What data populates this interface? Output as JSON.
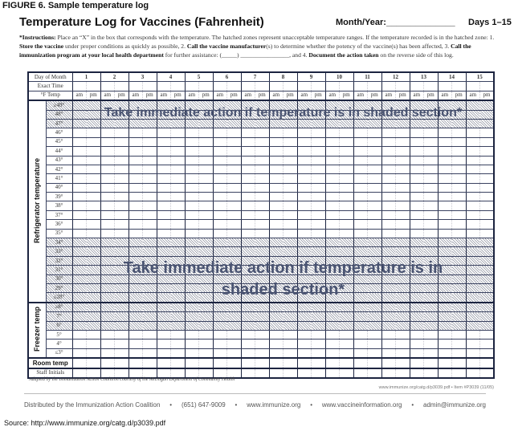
{
  "figure_caption": "FIGURE 6. Sample temperature log",
  "title": "Temperature Log for Vaccines (Fahrenheit)",
  "month_year_label": "Month/Year:______________",
  "days_label": "Days 1–15",
  "instructions": {
    "p1": "*Instructions:",
    "p2": " Place an “X” in the box that corresponds with the temperature. The hatched zones represent unacceptable temperature ranges. If the temperature recorded is in the hatched zone: 1. ",
    "p3": "Store the vaccine",
    "p4": " under proper conditions as quickly as possible, 2. ",
    "p5": "Call the vaccine manufacturer",
    "p6": "(s) to determine whether the potency of the vaccine(s) has been affected, 3. ",
    "p7": "Call the immunization program at your local health department",
    "p8": " for further assistance: (_____) ________________, and 4. ",
    "p9": "Document the action taken",
    "p10": " on the reverse side of this log."
  },
  "table": {
    "day_header": "Day of Month",
    "time_header": "Exact Time",
    "temp_header": "°F Temp",
    "am": "am",
    "pm": "pm",
    "days": [
      "1",
      "2",
      "3",
      "4",
      "5",
      "6",
      "7",
      "8",
      "9",
      "10",
      "11",
      "12",
      "13",
      "14",
      "15"
    ],
    "refrigerator_label": "Refrigerator temperature",
    "refrigerator_rows": [
      {
        "t": "≥49°",
        "hatched": true
      },
      {
        "t": "48°",
        "hatched": true
      },
      {
        "t": "47°",
        "hatched": true
      },
      {
        "t": "46°",
        "hatched": false
      },
      {
        "t": "45°",
        "hatched": false
      },
      {
        "t": "44°",
        "hatched": false
      },
      {
        "t": "43°",
        "hatched": false
      },
      {
        "t": "42°",
        "hatched": false
      },
      {
        "t": "41°",
        "hatched": false
      },
      {
        "t": "40°",
        "hatched": false
      },
      {
        "t": "39°",
        "hatched": false
      },
      {
        "t": "38°",
        "hatched": false
      },
      {
        "t": "37°",
        "hatched": false
      },
      {
        "t": "36°",
        "hatched": false
      },
      {
        "t": "35°",
        "hatched": false
      },
      {
        "t": "34°",
        "hatched": true
      },
      {
        "t": "33°",
        "hatched": true
      },
      {
        "t": "32°",
        "hatched": true
      },
      {
        "t": "31°",
        "hatched": true
      },
      {
        "t": "30°",
        "hatched": true
      },
      {
        "t": "29°",
        "hatched": true
      },
      {
        "t": "≤28°",
        "hatched": true
      }
    ],
    "freezer_label": "Freezer temp",
    "freezer_rows": [
      {
        "t": "≥8°",
        "hatched": true
      },
      {
        "t": "7°",
        "hatched": true
      },
      {
        "t": "6°",
        "hatched": true
      },
      {
        "t": "5°",
        "hatched": false
      },
      {
        "t": "4°",
        "hatched": false
      },
      {
        "t": "≤3°",
        "hatched": false
      }
    ],
    "room_temp_label": "Room temp",
    "staff_initials_label": "Staff Initials"
  },
  "overlay_1": "Take immediate action if temperature is in shaded section*",
  "overlay_2_line1": "Take immediate action if temperature is in",
  "overlay_2_line2": "shaded section*",
  "adapted_note": "Adapted by the Immunization Action Coalition courtesy of the Michigan Department of Community Health",
  "item_note": "www.immunize.org/catg.d/p3039.pdf • Item #P3039 (11/05)",
  "distribution": [
    "Distributed by the Immunization Action Coalition",
    "•",
    "(651) 647-9009",
    "•",
    "www.immunize.org",
    "•",
    "www.vaccineinformation.org",
    "•",
    "admin@immunize.org"
  ],
  "source": "Source:  http://www.immunize.org/catg.d/p3039.pdf",
  "colors": {
    "grid": "#1c2440",
    "overlay_text": "#4a5472",
    "hatch": "#8a8e9c"
  }
}
